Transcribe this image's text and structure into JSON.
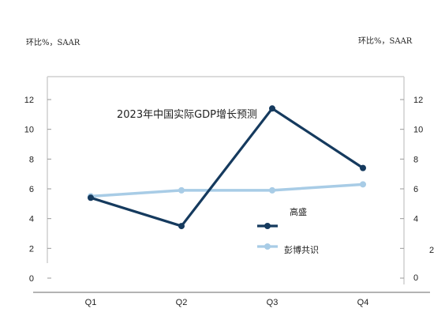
{
  "units": {
    "left": "环比%，SAAR",
    "right": "环比%，SAAR"
  },
  "chart_data": {
    "type": "line",
    "title": "2023年中国实际GDP增长预测",
    "categories": [
      "Q1",
      "Q2",
      "Q3",
      "Q4"
    ],
    "series": [
      {
        "name": "高盛",
        "values": [
          5.4,
          3.5,
          11.4,
          7.4
        ],
        "color": "#153a5e"
      },
      {
        "name": "彭博共识",
        "values": [
          5.5,
          5.9,
          5.9,
          6.3
        ],
        "color": "#a8cce6"
      }
    ],
    "ylim": [
      0,
      13
    ],
    "left_ticks": [
      "0",
      "2",
      "4",
      "6",
      "8",
      "10",
      "12"
    ],
    "right_ticks": [
      "0",
      "2",
      "4",
      "6",
      "8",
      "10",
      "12"
    ],
    "grid": false,
    "legend_position": "lower-right"
  }
}
